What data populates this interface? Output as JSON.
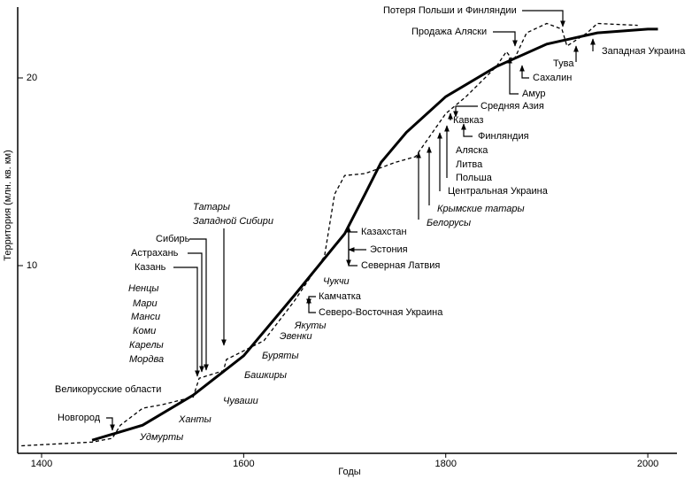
{
  "chart_data": {
    "type": "line",
    "x_label": "Годы",
    "y_label": "Территория (млн. кв. км)",
    "xlim": [
      1376,
      2027
    ],
    "ylim": [
      0,
      24
    ],
    "xticks": [
      1400,
      1600,
      1800,
      2000
    ],
    "yticks": [
      10,
      20
    ],
    "series": [
      {
        "style": "dashed",
        "color": "#000000",
        "x": [
          1380,
          1450,
          1470,
          1478,
          1500,
          1520,
          1550,
          1556,
          1580,
          1583,
          1620,
          1650,
          1680,
          1690,
          1700,
          1720,
          1750,
          1770,
          1800,
          1820,
          1850,
          1860,
          1867,
          1880,
          1900,
          1915,
          1920,
          1940,
          1950,
          1990
        ],
        "values": [
          0.4,
          0.6,
          0.8,
          1.5,
          2.4,
          2.6,
          3.0,
          4.0,
          4.4,
          5.0,
          6.0,
          8.1,
          10.5,
          13.8,
          14.8,
          14.9,
          15.5,
          15.8,
          18.1,
          19.0,
          20.6,
          21.4,
          20.9,
          22.4,
          22.9,
          22.6,
          21.7,
          22.4,
          22.9,
          22.8
        ]
      },
      {
        "style": "solid",
        "color": "#000000",
        "x": [
          1450,
          1500,
          1550,
          1600,
          1650,
          1700,
          1720,
          1736,
          1761,
          1800,
          1850,
          1900,
          1950,
          2000,
          2010
        ],
        "values": [
          0.7,
          1.5,
          3.1,
          5.2,
          8.4,
          11.7,
          13.8,
          15.5,
          17.1,
          19.0,
          20.6,
          21.8,
          22.4,
          22.6,
          22.6
        ]
      }
    ],
    "annotations": [
      {
        "text": "Новгород"
      },
      {
        "text": "Великорусские области"
      },
      {
        "text": "Казань"
      },
      {
        "text": "Астрахань"
      },
      {
        "text": "Сибирь"
      },
      {
        "text": "Татары",
        "style": "italic"
      },
      {
        "text": "Западной Сибири",
        "style": "italic"
      },
      {
        "text": "Ненцы",
        "style": "italic"
      },
      {
        "text": "Мари",
        "style": "italic"
      },
      {
        "text": "Манси",
        "style": "italic"
      },
      {
        "text": "Коми",
        "style": "italic"
      },
      {
        "text": "Карелы",
        "style": "italic"
      },
      {
        "text": "Мордва",
        "style": "italic"
      },
      {
        "text": "Удмурты",
        "style": "italic"
      },
      {
        "text": "Ханты",
        "style": "italic"
      },
      {
        "text": "Чуваши",
        "style": "italic"
      },
      {
        "text": "Башкиры",
        "style": "italic"
      },
      {
        "text": "Буряты",
        "style": "italic"
      },
      {
        "text": "Эвенки",
        "style": "italic"
      },
      {
        "text": "Якуты",
        "style": "italic"
      },
      {
        "text": "Чукчи",
        "style": "italic"
      },
      {
        "text": "Камчатка"
      },
      {
        "text": "Северо-Восточная Украина"
      },
      {
        "text": "Казахстан"
      },
      {
        "text": "Эстония"
      },
      {
        "text": "Северная Латвия"
      },
      {
        "text": "Белорусы",
        "style": "italic"
      },
      {
        "text": "Крымские татары",
        "style": "italic"
      },
      {
        "text": "Центральная Украина"
      },
      {
        "text": "Польша"
      },
      {
        "text": "Литва"
      },
      {
        "text": "Аляска"
      },
      {
        "text": "Финляндия"
      },
      {
        "text": "Кавказ"
      },
      {
        "text": "Средняя Азия"
      },
      {
        "text": "Амур"
      },
      {
        "text": "Сахалин"
      },
      {
        "text": "Тува"
      },
      {
        "text": "Западная Украина"
      },
      {
        "text": "Продажа Аляски"
      },
      {
        "text": "Потеря Польши и Финляндии"
      }
    ]
  }
}
